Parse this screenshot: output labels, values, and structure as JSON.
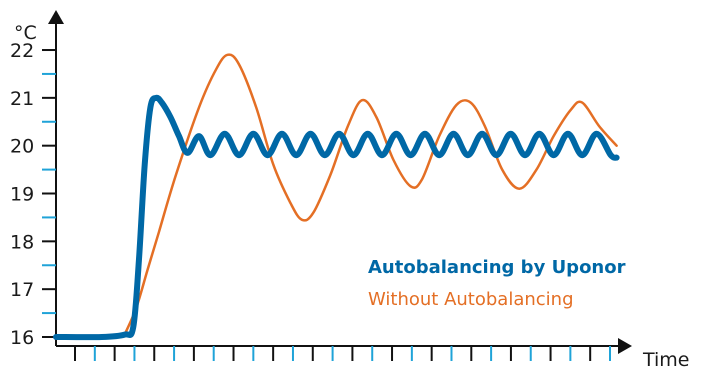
{
  "chart_data": {
    "type": "line",
    "ylabel": "°C",
    "xlabel": "Time",
    "ylim": [
      16,
      22.5
    ],
    "xlim": [
      0,
      100
    ],
    "yticks": [
      16,
      17,
      18,
      19,
      20,
      21,
      22
    ],
    "x_minor_tick_count": 28,
    "grid": false,
    "legend_position": "right-center",
    "series": [
      {
        "name": "Autobalancing by Uponor",
        "color": "#0068a6",
        "emphasis": "bold",
        "points": [
          [
            0,
            16.0
          ],
          [
            8,
            16.0
          ],
          [
            12,
            16.05
          ],
          [
            13.5,
            16.2
          ],
          [
            14.5,
            17.6
          ],
          [
            15.5,
            19.6
          ],
          [
            16.5,
            20.8
          ],
          [
            17.5,
            21.0
          ],
          [
            18.5,
            20.9
          ],
          [
            20,
            20.6
          ],
          [
            21.5,
            20.2
          ],
          [
            23,
            19.85
          ],
          [
            25,
            20.2
          ],
          [
            27,
            19.8
          ],
          [
            29.5,
            20.25
          ],
          [
            32,
            19.8
          ],
          [
            34.5,
            20.25
          ],
          [
            37,
            19.8
          ],
          [
            39.5,
            20.25
          ],
          [
            42,
            19.8
          ],
          [
            44.5,
            20.25
          ],
          [
            47,
            19.8
          ],
          [
            49.5,
            20.25
          ],
          [
            52,
            19.8
          ],
          [
            54.5,
            20.25
          ],
          [
            57,
            19.8
          ],
          [
            59.5,
            20.25
          ],
          [
            62,
            19.8
          ],
          [
            64.5,
            20.25
          ],
          [
            67,
            19.8
          ],
          [
            69.5,
            20.25
          ],
          [
            72,
            19.8
          ],
          [
            74.5,
            20.25
          ],
          [
            77,
            19.8
          ],
          [
            79.5,
            20.25
          ],
          [
            82,
            19.8
          ],
          [
            84.5,
            20.25
          ],
          [
            87,
            19.8
          ],
          [
            89.5,
            20.25
          ],
          [
            92,
            19.8
          ],
          [
            94.5,
            20.25
          ],
          [
            97,
            19.8
          ],
          [
            98,
            19.75
          ]
        ]
      },
      {
        "name": "Without Autobalancing",
        "color": "#e46f25",
        "emphasis": "normal",
        "points": [
          [
            12,
            16.05
          ],
          [
            14,
            16.6
          ],
          [
            16,
            17.4
          ],
          [
            18,
            18.2
          ],
          [
            21,
            19.4
          ],
          [
            25,
            20.8
          ],
          [
            28,
            21.6
          ],
          [
            30,
            21.9
          ],
          [
            32,
            21.7
          ],
          [
            35,
            20.8
          ],
          [
            38,
            19.6
          ],
          [
            41,
            18.8
          ],
          [
            43,
            18.45
          ],
          [
            45,
            18.6
          ],
          [
            48,
            19.4
          ],
          [
            51,
            20.4
          ],
          [
            53.5,
            20.95
          ],
          [
            56,
            20.6
          ],
          [
            59,
            19.7
          ],
          [
            62,
            19.15
          ],
          [
            64,
            19.3
          ],
          [
            67,
            20.2
          ],
          [
            70,
            20.85
          ],
          [
            72.5,
            20.9
          ],
          [
            75,
            20.4
          ],
          [
            78,
            19.5
          ],
          [
            81,
            19.1
          ],
          [
            84,
            19.5
          ],
          [
            87,
            20.2
          ],
          [
            90,
            20.75
          ],
          [
            92,
            20.9
          ],
          [
            95,
            20.4
          ],
          [
            98,
            20.0
          ]
        ]
      }
    ]
  }
}
